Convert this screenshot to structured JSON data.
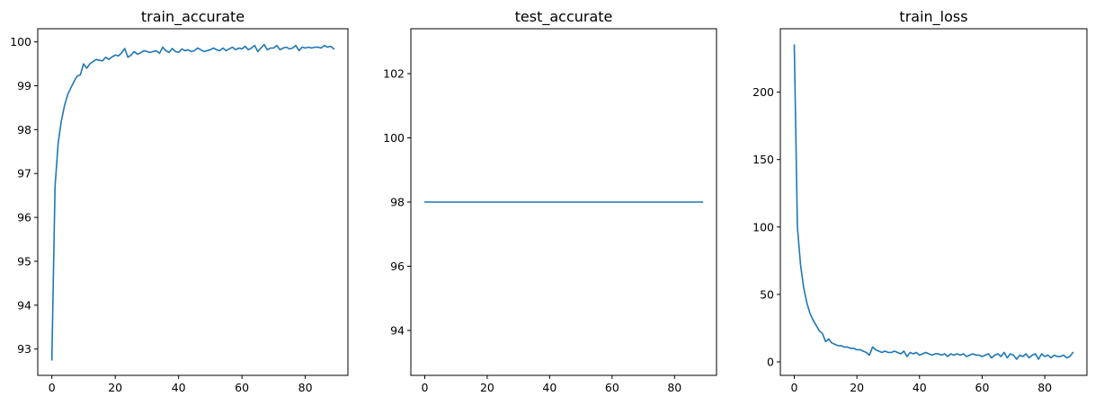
{
  "colors": {
    "series": "#1f77b4"
  },
  "chart_data": [
    {
      "type": "line",
      "title": "train_accurate",
      "xlabel": "",
      "ylabel": "",
      "xlim": [
        -4.45,
        93.45
      ],
      "ylim": [
        92.4,
        100.3
      ],
      "xticks": [
        0,
        20,
        40,
        60,
        80
      ],
      "yticks": [
        93,
        94,
        95,
        96,
        97,
        98,
        99,
        100
      ],
      "grid": false,
      "x": [
        0,
        1,
        2,
        3,
        4,
        5,
        6,
        7,
        8,
        9,
        10,
        11,
        12,
        13,
        14,
        15,
        16,
        17,
        18,
        19,
        20,
        21,
        22,
        23,
        24,
        25,
        26,
        27,
        28,
        29,
        30,
        31,
        32,
        33,
        34,
        35,
        36,
        37,
        38,
        39,
        40,
        41,
        42,
        43,
        44,
        45,
        46,
        47,
        48,
        49,
        50,
        51,
        52,
        53,
        54,
        55,
        56,
        57,
        58,
        59,
        60,
        61,
        62,
        63,
        64,
        65,
        66,
        67,
        68,
        69,
        70,
        71,
        72,
        73,
        74,
        75,
        76,
        77,
        78,
        79,
        80,
        81,
        82,
        83,
        84,
        85,
        86,
        87,
        88,
        89
      ],
      "y": [
        92.75,
        96.7,
        97.7,
        98.2,
        98.55,
        98.8,
        98.95,
        99.1,
        99.22,
        99.25,
        99.5,
        99.4,
        99.5,
        99.55,
        99.6,
        99.58,
        99.57,
        99.65,
        99.6,
        99.66,
        99.7,
        99.68,
        99.75,
        99.85,
        99.65,
        99.7,
        99.78,
        99.72,
        99.75,
        99.8,
        99.78,
        99.76,
        99.78,
        99.8,
        99.74,
        99.88,
        99.8,
        99.76,
        99.85,
        99.78,
        99.76,
        99.84,
        99.8,
        99.82,
        99.78,
        99.8,
        99.86,
        99.82,
        99.78,
        99.8,
        99.82,
        99.86,
        99.82,
        99.8,
        99.86,
        99.8,
        99.84,
        99.88,
        99.82,
        99.86,
        99.84,
        99.9,
        99.82,
        99.86,
        99.92,
        99.78,
        99.86,
        99.94,
        99.82,
        99.86,
        99.86,
        99.92,
        99.82,
        99.86,
        99.88,
        99.84,
        99.86,
        99.92,
        99.8,
        99.88,
        99.86,
        99.88,
        99.86,
        99.88,
        99.88,
        99.86,
        99.92,
        99.88,
        99.9,
        99.84
      ]
    },
    {
      "type": "line",
      "title": "test_accurate",
      "xlabel": "",
      "ylabel": "",
      "xlim": [
        -4.45,
        93.45
      ],
      "ylim": [
        92.6,
        103.4
      ],
      "xticks": [
        0,
        20,
        40,
        60,
        80
      ],
      "yticks": [
        94,
        96,
        98,
        100,
        102
      ],
      "grid": false,
      "x": [
        0,
        89
      ],
      "y": [
        98,
        98
      ]
    },
    {
      "type": "line",
      "title": "train_loss",
      "xlabel": "",
      "ylabel": "",
      "xlim": [
        -4.45,
        93.45
      ],
      "ylim": [
        -10,
        247
      ],
      "xticks": [
        0,
        20,
        40,
        60,
        80
      ],
      "yticks": [
        0,
        50,
        100,
        150,
        200
      ],
      "grid": false,
      "x": [
        0,
        1,
        2,
        3,
        4,
        5,
        6,
        7,
        8,
        9,
        10,
        11,
        12,
        13,
        14,
        15,
        16,
        17,
        18,
        19,
        20,
        21,
        22,
        23,
        24,
        25,
        26,
        27,
        28,
        29,
        30,
        31,
        32,
        33,
        34,
        35,
        36,
        37,
        38,
        39,
        40,
        41,
        42,
        43,
        44,
        45,
        46,
        47,
        48,
        49,
        50,
        51,
        52,
        53,
        54,
        55,
        56,
        57,
        58,
        59,
        60,
        61,
        62,
        63,
        64,
        65,
        66,
        67,
        68,
        69,
        70,
        71,
        72,
        73,
        74,
        75,
        76,
        77,
        78,
        79,
        80,
        81,
        82,
        83,
        84,
        85,
        86,
        87,
        88,
        89
      ],
      "y": [
        235,
        100,
        72,
        55,
        44,
        36,
        31,
        27,
        23,
        21,
        15,
        17,
        14,
        13,
        12,
        12,
        11,
        11,
        10,
        10,
        9,
        9,
        8,
        7,
        5,
        11,
        9,
        8,
        7,
        8,
        7,
        7,
        8,
        7,
        6,
        8,
        4,
        7,
        6,
        7,
        5,
        6,
        7,
        6,
        5,
        6,
        6,
        5,
        6,
        4,
        6,
        5,
        6,
        5,
        6,
        4,
        5,
        6,
        5,
        5,
        4,
        5,
        6,
        3,
        5,
        6,
        4,
        7,
        3,
        6,
        5,
        2,
        5,
        4,
        6,
        3,
        5,
        6,
        2,
        6,
        4,
        5,
        3,
        5,
        4,
        4,
        5,
        3,
        4,
        7
      ]
    }
  ]
}
